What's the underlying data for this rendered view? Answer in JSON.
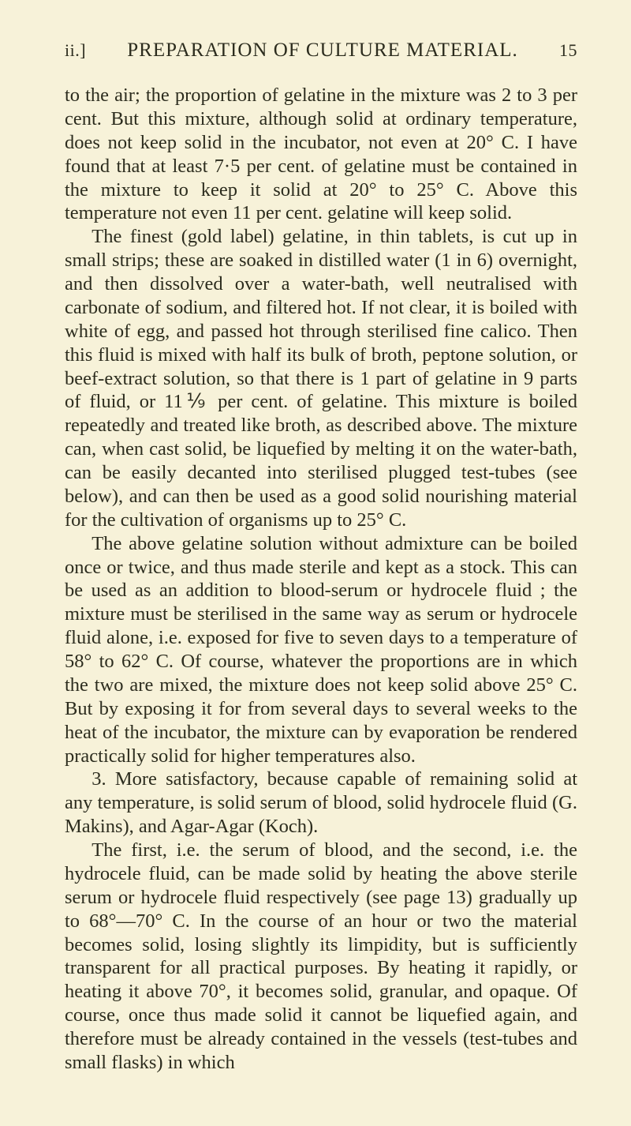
{
  "header": {
    "section": "ii.]",
    "title": "PREPARATION OF CULTURE MATERIAL.",
    "page_number": "15"
  },
  "paragraphs": {
    "p1": "to the air; the proportion of gelatine in the mixture was 2 to 3 per cent. But this mixture, although solid at ordinary temperature, does not keep solid in the incubator, not even at 20° C. I have found that at least 7·5 per cent. of gelatine must be contained in the mixture to keep it solid at 20° to 25° C. Above this temperature not even 11 per cent. gelatine will keep solid.",
    "p2": "The finest (gold label) gelatine, in thin tablets, is cut up in small strips; these are soaked in distilled water (1 in 6) overnight, and then dissolved over a water-bath, well neutralised with carbonate of sodium, and filtered hot. If not clear, it is boiled with white of egg, and passed hot through sterilised fine calico. Then this fluid is mixed with half its bulk of broth, peptone solution, or beef-extract solution, so that there is 1 part of gelatine in 9 parts of fluid, or 11⅑ per cent. of gelatine. This mixture is boiled repeatedly and treated like broth, as described above. The mixture can, when cast solid, be liquefied by melting it on the water-bath, can be easily decanted into sterilised plugged test-tubes (see below), and can then be used as a good solid nourishing material for the cultivation of organisms up to 25° C.",
    "p3": "The above gelatine solution without admixture can be boiled once or twice, and thus made sterile and kept as a stock. This can be used as an addition to blood-serum or hydrocele fluid ; the mixture must be sterilised in the same way as serum or hydrocele fluid alone, i.e. exposed for five to seven days to a temperature of 58° to 62° C. Of course, whatever the proportions are in which the two are mixed, the mixture does not keep solid above 25° C. But by exposing it for from several days to several weeks to the heat of the incubator, the mixture can by evaporation be rendered practically solid for higher temperatures also.",
    "p4": "3. More satisfactory, because capable of remaining solid at any temperature, is solid serum of blood, solid hydrocele fluid (G. Makins), and Agar-Agar (Koch).",
    "p5": "The first, i.e. the serum of blood, and the second, i.e. the hydrocele fluid, can be made solid by heating the above sterile serum or hydrocele fluid respectively (see page 13) gradually up to 68°—70° C. In the course of an hour or two the material becomes solid, losing slightly its limpidity, but is sufficiently transparent for all practical purposes. By heating it rapidly, or heating it above 70°, it becomes solid, granular, and opaque. Of course, once thus made solid it cannot be liquefied again, and therefore must be already contained in the vessels (test-tubes and small flasks) in which"
  }
}
